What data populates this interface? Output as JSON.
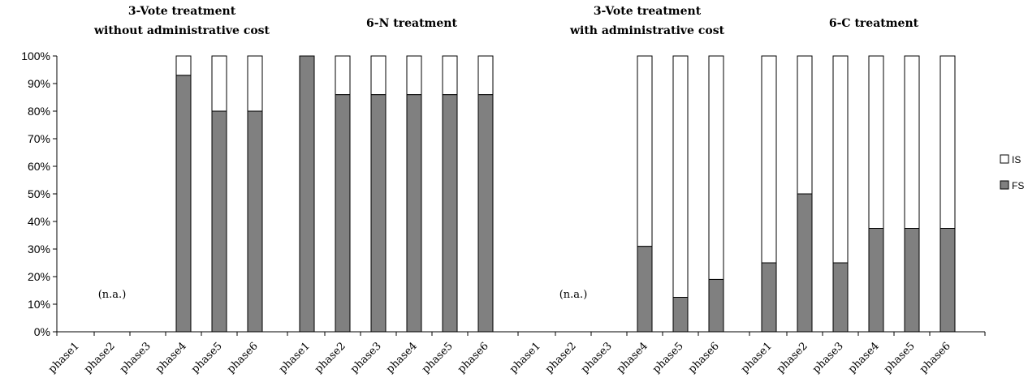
{
  "chart_data": {
    "type": "bar",
    "stacked": true,
    "percent": true,
    "ylim": [
      0,
      100
    ],
    "yticks": [
      "0%",
      "10%",
      "20%",
      "30%",
      "40%",
      "50%",
      "60%",
      "70%",
      "80%",
      "90%",
      "100%"
    ],
    "legend": {
      "position": "right",
      "entries": [
        {
          "name": "IS",
          "color": "#ffffff"
        },
        {
          "name": "FS",
          "color": "#808080"
        }
      ]
    },
    "colors": {
      "FS": "#808080",
      "IS": "#ffffff",
      "outline": "#000000"
    },
    "groups": [
      {
        "title_lines": [
          "3-Vote treatment",
          "without administrative cost"
        ],
        "categories": [
          "phase1",
          "phase2",
          "phase3",
          "phase4",
          "phase5",
          "phase6"
        ],
        "FS": [
          null,
          null,
          null,
          93,
          80,
          80
        ],
        "IS": [
          null,
          null,
          null,
          7,
          20,
          20
        ],
        "note": "(n.a.)"
      },
      {
        "title_lines": [
          "6-N treatment"
        ],
        "categories": [
          "phase1",
          "phase2",
          "phase3",
          "phase4",
          "phase5",
          "phase6"
        ],
        "FS": [
          100,
          86,
          86,
          86,
          86,
          86
        ],
        "IS": [
          0,
          14,
          14,
          14,
          14,
          14
        ],
        "note": ""
      },
      {
        "title_lines": [
          "3-Vote treatment",
          "with administrative cost"
        ],
        "categories": [
          "phase1",
          "phase2",
          "phase3",
          "phase4",
          "phase5",
          "phase6"
        ],
        "FS": [
          null,
          null,
          null,
          31,
          12.5,
          19
        ],
        "IS": [
          null,
          null,
          null,
          69,
          87.5,
          81
        ],
        "note": "(n.a.)"
      },
      {
        "title_lines": [
          "6-C treatment"
        ],
        "categories": [
          "phase1",
          "phase2",
          "phase3",
          "phase4",
          "phase5",
          "phase6"
        ],
        "FS": [
          25,
          50,
          25,
          37.5,
          37.5,
          37.5
        ],
        "IS": [
          75,
          50,
          75,
          62.5,
          62.5,
          62.5
        ],
        "note": ""
      }
    ]
  }
}
